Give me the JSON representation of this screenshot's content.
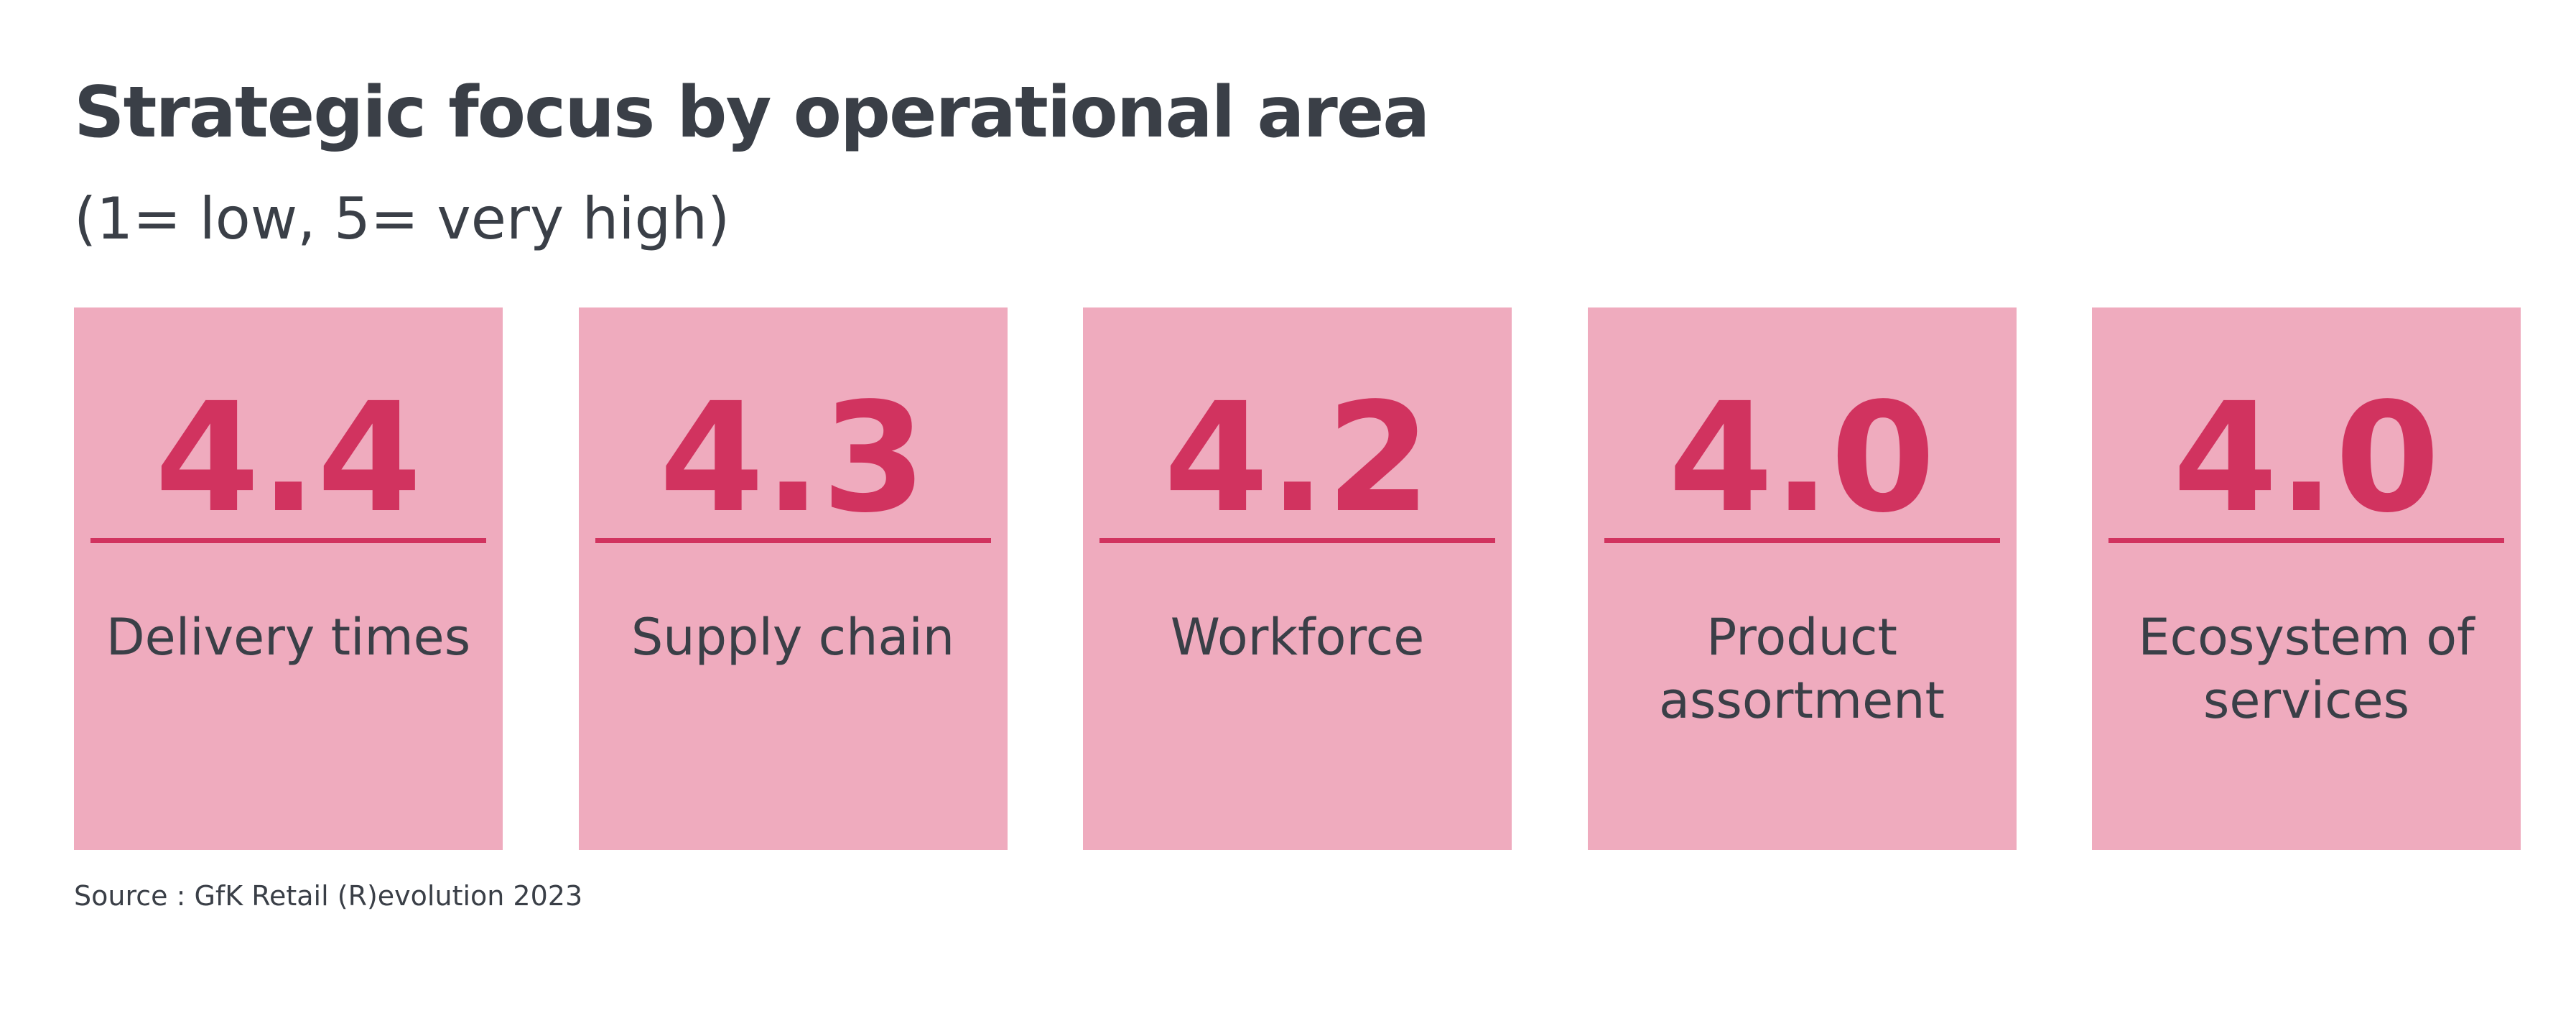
{
  "header": {
    "title": "Strategic focus by operational area",
    "subtitle": "(1= low, 5= very high)"
  },
  "cards": [
    {
      "value": "4.4",
      "label": "Delivery times"
    },
    {
      "value": "4.3",
      "label": "Supply chain"
    },
    {
      "value": "4.2",
      "label": "Workforce"
    },
    {
      "value": "4.0",
      "label": "Product assortment"
    },
    {
      "value": "4.0",
      "label": "Ecosystem of services"
    }
  ],
  "source": "Source : GfK Retail (R)evolution 2023"
}
